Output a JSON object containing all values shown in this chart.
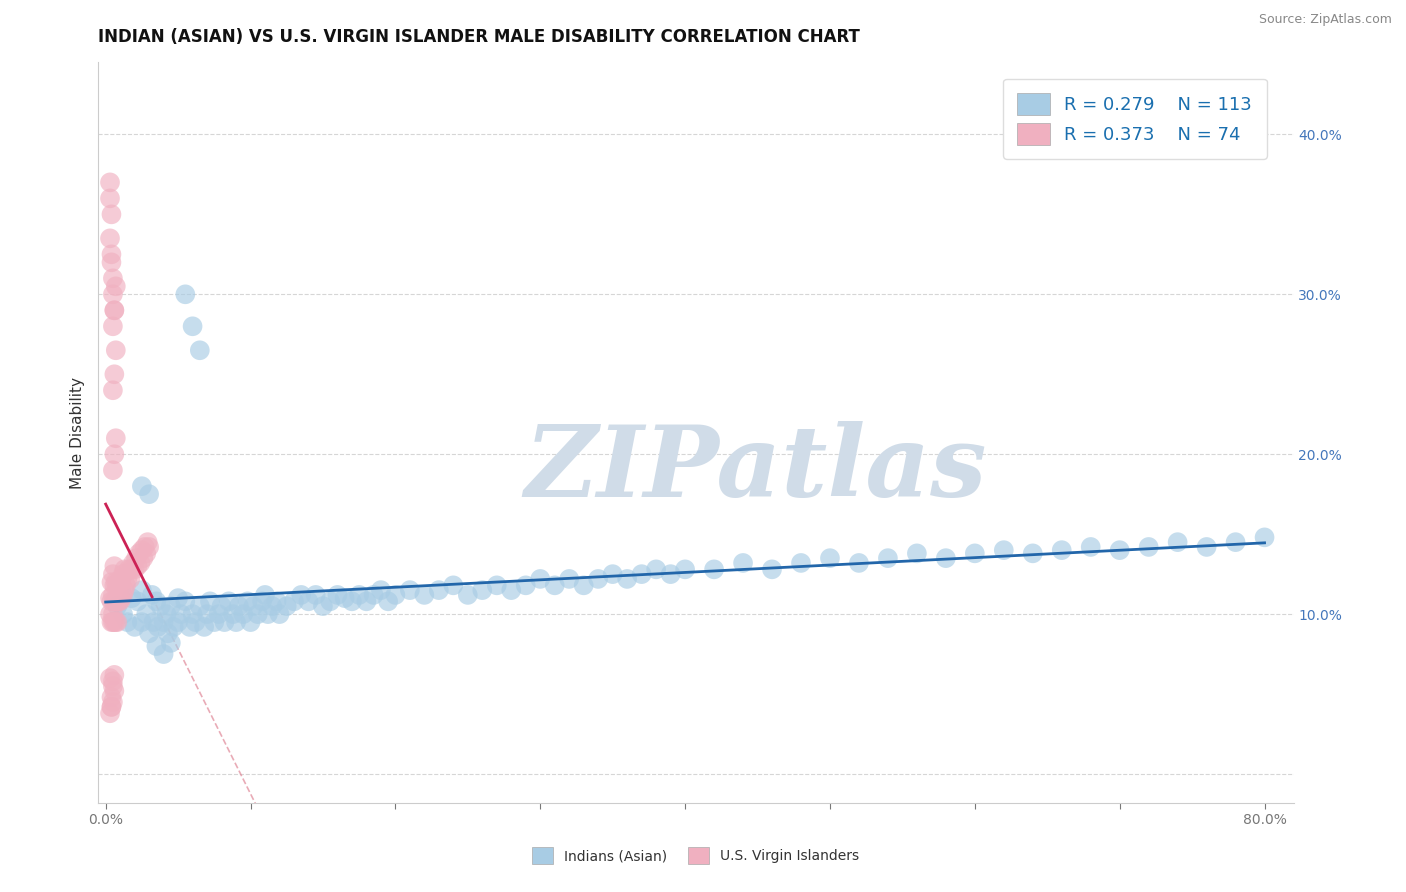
{
  "title": "INDIAN (ASIAN) VS U.S. VIRGIN ISLANDER MALE DISABILITY CORRELATION CHART",
  "source": "Source: ZipAtlas.com",
  "ylabel": "Male Disability",
  "xlabel": "",
  "xlim": [
    -0.005,
    0.82
  ],
  "ylim": [
    -0.018,
    0.445
  ],
  "xticks": [
    0.0,
    0.1,
    0.2,
    0.3,
    0.4,
    0.5,
    0.6,
    0.7,
    0.8
  ],
  "xticklabels": [
    "0.0%",
    "",
    "",
    "",
    "",
    "",
    "",
    "",
    "80.0%"
  ],
  "yticks_right": [
    0.1,
    0.2,
    0.3,
    0.4
  ],
  "yticklabels_right": [
    "10.0%",
    "20.0%",
    "30.0%",
    "40.0%"
  ],
  "legend_r1": "R = 0.279",
  "legend_n1": "N = 113",
  "legend_r2": "R = 0.373",
  "legend_n2": "N = 74",
  "blue_color": "#a8cce4",
  "pink_color": "#f0b0c0",
  "blue_line_color": "#2266aa",
  "pink_line_color": "#cc2255",
  "pink_dash_color": "#e08898",
  "watermark": "ZIPatlas",
  "watermark_color": "#d0dce8",
  "title_fontsize": 12,
  "axis_fontsize": 10,
  "legend_fontsize": 13,
  "blue_x": [
    0.008,
    0.012,
    0.015,
    0.018,
    0.02,
    0.022,
    0.025,
    0.025,
    0.028,
    0.03,
    0.032,
    0.033,
    0.035,
    0.036,
    0.038,
    0.04,
    0.042,
    0.043,
    0.045,
    0.047,
    0.05,
    0.05,
    0.052,
    0.055,
    0.058,
    0.06,
    0.062,
    0.065,
    0.068,
    0.07,
    0.072,
    0.075,
    0.078,
    0.08,
    0.082,
    0.085,
    0.088,
    0.09,
    0.092,
    0.095,
    0.098,
    0.1,
    0.102,
    0.105,
    0.108,
    0.11,
    0.112,
    0.115,
    0.118,
    0.12,
    0.125,
    0.13,
    0.135,
    0.14,
    0.145,
    0.15,
    0.155,
    0.16,
    0.165,
    0.17,
    0.175,
    0.18,
    0.185,
    0.19,
    0.195,
    0.2,
    0.21,
    0.22,
    0.23,
    0.24,
    0.25,
    0.26,
    0.27,
    0.28,
    0.29,
    0.3,
    0.31,
    0.32,
    0.33,
    0.34,
    0.35,
    0.36,
    0.37,
    0.38,
    0.39,
    0.4,
    0.42,
    0.44,
    0.46,
    0.48,
    0.5,
    0.52,
    0.54,
    0.56,
    0.58,
    0.6,
    0.62,
    0.64,
    0.66,
    0.68,
    0.7,
    0.72,
    0.74,
    0.76,
    0.78,
    0.8,
    0.03,
    0.025,
    0.035,
    0.04,
    0.045,
    0.055,
    0.06,
    0.065
  ],
  "blue_y": [
    0.105,
    0.1,
    0.095,
    0.11,
    0.092,
    0.108,
    0.095,
    0.115,
    0.1,
    0.088,
    0.112,
    0.095,
    0.108,
    0.092,
    0.105,
    0.095,
    0.1,
    0.088,
    0.105,
    0.092,
    0.11,
    0.095,
    0.1,
    0.108,
    0.092,
    0.1,
    0.095,
    0.105,
    0.092,
    0.1,
    0.108,
    0.095,
    0.1,
    0.105,
    0.095,
    0.108,
    0.1,
    0.095,
    0.105,
    0.1,
    0.108,
    0.095,
    0.105,
    0.1,
    0.108,
    0.112,
    0.1,
    0.105,
    0.108,
    0.1,
    0.105,
    0.108,
    0.112,
    0.108,
    0.112,
    0.105,
    0.108,
    0.112,
    0.11,
    0.108,
    0.112,
    0.108,
    0.112,
    0.115,
    0.108,
    0.112,
    0.115,
    0.112,
    0.115,
    0.118,
    0.112,
    0.115,
    0.118,
    0.115,
    0.118,
    0.122,
    0.118,
    0.122,
    0.118,
    0.122,
    0.125,
    0.122,
    0.125,
    0.128,
    0.125,
    0.128,
    0.128,
    0.132,
    0.128,
    0.132,
    0.135,
    0.132,
    0.135,
    0.138,
    0.135,
    0.138,
    0.14,
    0.138,
    0.14,
    0.142,
    0.14,
    0.142,
    0.145,
    0.142,
    0.145,
    0.148,
    0.175,
    0.18,
    0.08,
    0.075,
    0.082,
    0.3,
    0.28,
    0.265
  ],
  "pink_x": [
    0.003,
    0.003,
    0.004,
    0.004,
    0.004,
    0.005,
    0.005,
    0.005,
    0.005,
    0.006,
    0.006,
    0.006,
    0.006,
    0.007,
    0.007,
    0.007,
    0.008,
    0.008,
    0.008,
    0.009,
    0.009,
    0.01,
    0.01,
    0.011,
    0.011,
    0.012,
    0.012,
    0.013,
    0.013,
    0.014,
    0.015,
    0.016,
    0.017,
    0.018,
    0.019,
    0.02,
    0.021,
    0.022,
    0.023,
    0.024,
    0.025,
    0.026,
    0.027,
    0.028,
    0.029,
    0.03,
    0.005,
    0.006,
    0.007,
    0.005,
    0.006,
    0.007,
    0.005,
    0.006,
    0.007,
    0.005,
    0.006,
    0.004,
    0.005,
    0.006,
    0.004,
    0.005,
    0.003,
    0.004,
    0.003,
    0.003,
    0.004,
    0.003,
    0.004,
    0.004,
    0.005,
    0.005,
    0.006,
    0.003
  ],
  "pink_y": [
    0.1,
    0.11,
    0.095,
    0.108,
    0.12,
    0.1,
    0.112,
    0.125,
    0.095,
    0.108,
    0.118,
    0.13,
    0.095,
    0.108,
    0.12,
    0.095,
    0.108,
    0.118,
    0.095,
    0.108,
    0.12,
    0.108,
    0.118,
    0.11,
    0.122,
    0.112,
    0.125,
    0.115,
    0.128,
    0.118,
    0.122,
    0.128,
    0.122,
    0.128,
    0.132,
    0.128,
    0.135,
    0.13,
    0.138,
    0.132,
    0.14,
    0.135,
    0.142,
    0.138,
    0.145,
    0.142,
    0.19,
    0.2,
    0.21,
    0.24,
    0.25,
    0.265,
    0.28,
    0.29,
    0.305,
    0.058,
    0.052,
    0.048,
    0.055,
    0.062,
    0.042,
    0.045,
    0.038,
    0.042,
    0.06,
    0.36,
    0.35,
    0.335,
    0.325,
    0.32,
    0.31,
    0.3,
    0.29,
    0.37
  ]
}
